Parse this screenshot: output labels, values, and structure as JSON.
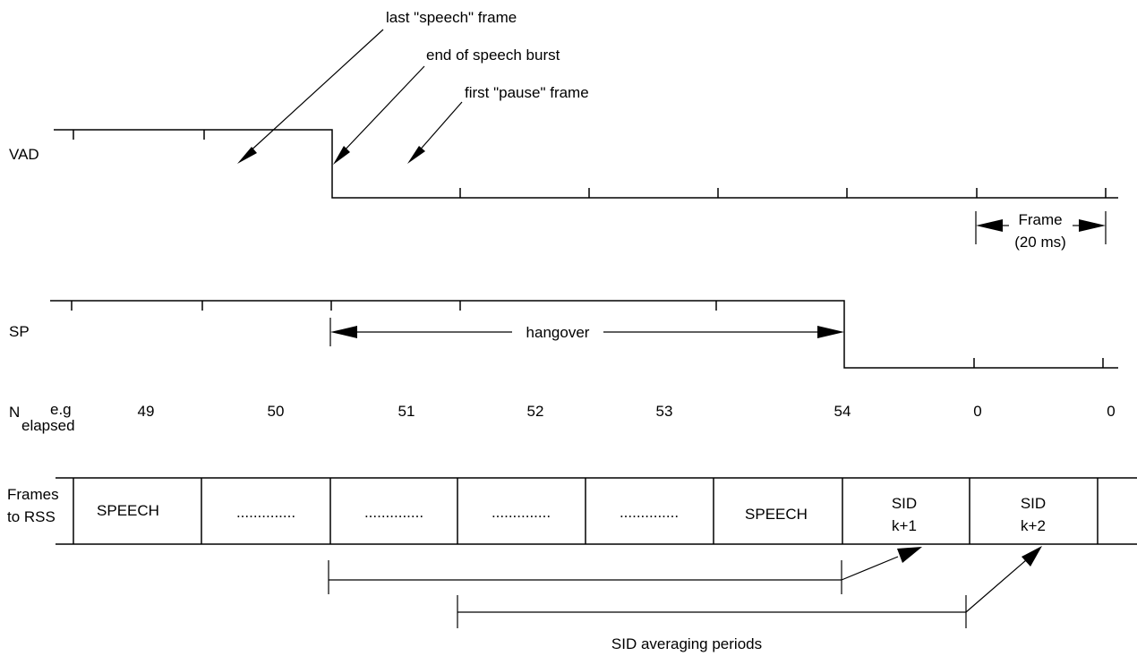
{
  "annotations": {
    "last_speech_frame": "last \"speech\" frame",
    "end_of_speech_burst": "end of speech burst",
    "first_pause_frame": "first \"pause\" frame"
  },
  "signals": {
    "vad_label": "VAD",
    "sp_label": "SP",
    "hangover_label": "hangover"
  },
  "frame_scale": {
    "label_line1": "Frame",
    "label_line2": "(20 ms)"
  },
  "n_elapsed": {
    "label_main": "N",
    "label_sub": "elapsed",
    "label_sup": "e.g",
    "values": [
      "49",
      "50",
      "51",
      "52",
      "53",
      "54",
      "0",
      "0"
    ]
  },
  "frames_to_rss": {
    "label_line1": "Frames",
    "label_line2": "to RSS",
    "cells": [
      {
        "line1": "SPEECH",
        "line2": ""
      },
      {
        "line1": "..............",
        "line2": ""
      },
      {
        "line1": "..............",
        "line2": ""
      },
      {
        "line1": "..............",
        "line2": ""
      },
      {
        "line1": "..............",
        "line2": ""
      },
      {
        "line1": "SPEECH",
        "line2": ""
      },
      {
        "line1": "SID",
        "line2": "k+1"
      },
      {
        "line1": "SID",
        "line2": "k+2"
      }
    ]
  },
  "sid_averaging_label": "SID averaging periods"
}
